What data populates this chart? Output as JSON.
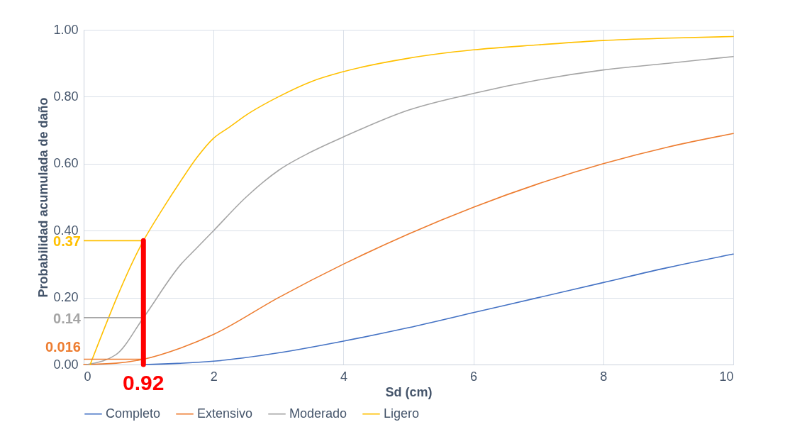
{
  "chart_data": {
    "type": "line",
    "xlabel": "Sd (cm)",
    "ylabel": "Probabilidad acumulada de daño",
    "xlim": [
      0,
      10
    ],
    "xticks": [
      0,
      2,
      4,
      6,
      8,
      10
    ],
    "ylim": [
      0,
      1
    ],
    "yticks": [
      {
        "value": 0,
        "label": "0.00"
      },
      {
        "value": 0.2,
        "label": "0.20"
      },
      {
        "value": 0.4,
        "label": "0.40"
      },
      {
        "value": 0.6,
        "label": "0.60"
      },
      {
        "value": 0.8,
        "label": "0.80"
      },
      {
        "value": 1,
        "label": "1.00"
      }
    ],
    "grid": true,
    "legend": "bottom",
    "line_style": "solid",
    "marker": "none",
    "series": [
      {
        "name": "Completo",
        "color": "#4472c4",
        "x": [
          0.92,
          2,
          3,
          4,
          5,
          6,
          7,
          8,
          9,
          10
        ],
        "values": [
          0,
          0.01,
          0.035,
          0.07,
          0.11,
          0.155,
          0.2,
          0.245,
          0.29,
          0.33
        ]
      },
      {
        "name": "Extensivo",
        "color": "#ed7d31",
        "x": [
          0,
          0.5,
          0.92,
          1.5,
          2,
          3,
          4,
          5,
          6,
          7,
          8,
          9,
          10
        ],
        "values": [
          0,
          0.004,
          0.016,
          0.05,
          0.09,
          0.2,
          0.3,
          0.39,
          0.47,
          0.54,
          0.6,
          0.65,
          0.69
        ]
      },
      {
        "name": "Moderado",
        "color": "#a5a5a5",
        "x": [
          0.05,
          0.5,
          0.92,
          1.5,
          1.75,
          2,
          2.5,
          3,
          3.5,
          4,
          5,
          6,
          7,
          8,
          9,
          10
        ],
        "values": [
          0,
          0.03,
          0.14,
          0.3,
          0.35,
          0.4,
          0.5,
          0.58,
          0.635,
          0.68,
          0.76,
          0.81,
          0.85,
          0.88,
          0.9,
          0.92
        ]
      },
      {
        "name": "Ligero",
        "color": "#ffc000",
        "x": [
          0.1,
          0.92,
          1.2,
          1.5,
          1.75,
          2,
          2.25,
          2.5,
          3,
          3.5,
          4,
          5,
          6,
          7,
          8,
          9,
          10
        ],
        "values": [
          0,
          0.37,
          0.46,
          0.55,
          0.62,
          0.676,
          0.71,
          0.745,
          0.8,
          0.845,
          0.875,
          0.915,
          0.94,
          0.955,
          0.968,
          0.975,
          0.98
        ]
      },
      {
        "color": "#ffc000",
        "x": [
          0,
          0.92
        ],
        "values": [
          0.37,
          0.37
        ]
      },
      {
        "color": "#a5a5a5",
        "x": [
          0,
          0.92
        ],
        "values": [
          0.14,
          0.14
        ]
      },
      {
        "color": "#ed7d31",
        "x": [
          0,
          0.92
        ],
        "values": [
          0.016,
          0.016
        ]
      },
      {
        "color": "#ff0000",
        "x": [
          0.92,
          0.92
        ],
        "values": [
          0,
          0.37
        ]
      }
    ],
    "annotations": [
      "0.37",
      "0.14",
      "0.016",
      "0.92"
    ]
  }
}
